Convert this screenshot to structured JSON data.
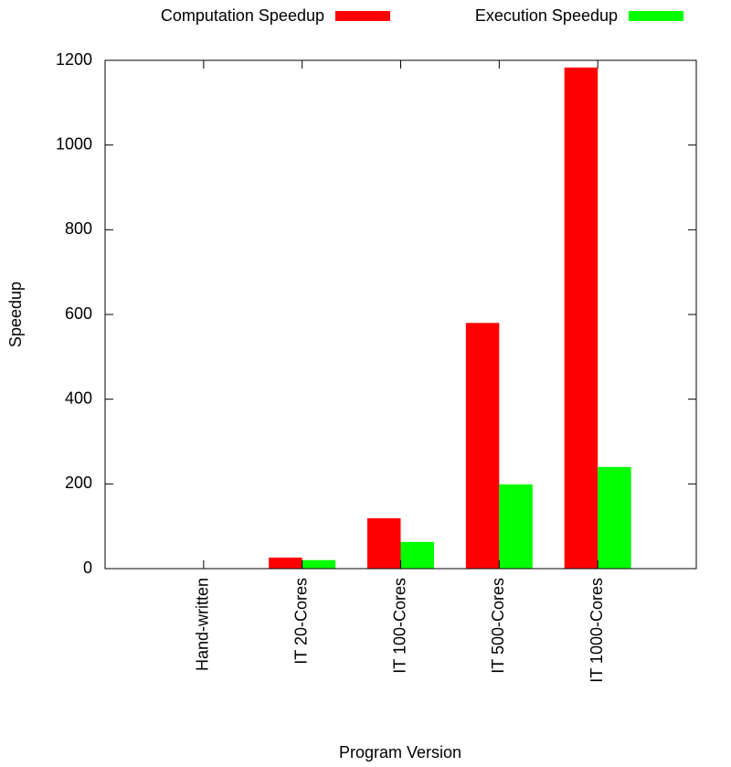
{
  "chart_data": {
    "type": "bar",
    "x_label": "Program Version",
    "y_label": "Speedup",
    "categories": [
      "Hand-written",
      "IT 20-Cores",
      "IT 100-Cores",
      "IT 500-Cores",
      "IT 1000-Cores"
    ],
    "series": [
      {
        "name": "Computation Speedup",
        "color": "#ff0000",
        "values": [
          1,
          26,
          119,
          580,
          1183
        ]
      },
      {
        "name": "Execution Speedup",
        "color": "#00ff00",
        "values": [
          1,
          20,
          63,
          199,
          240
        ]
      }
    ],
    "ylim": [
      0,
      1200
    ],
    "yticks": [
      0,
      200,
      400,
      600,
      800,
      1000,
      1200
    ],
    "legend": "top"
  }
}
